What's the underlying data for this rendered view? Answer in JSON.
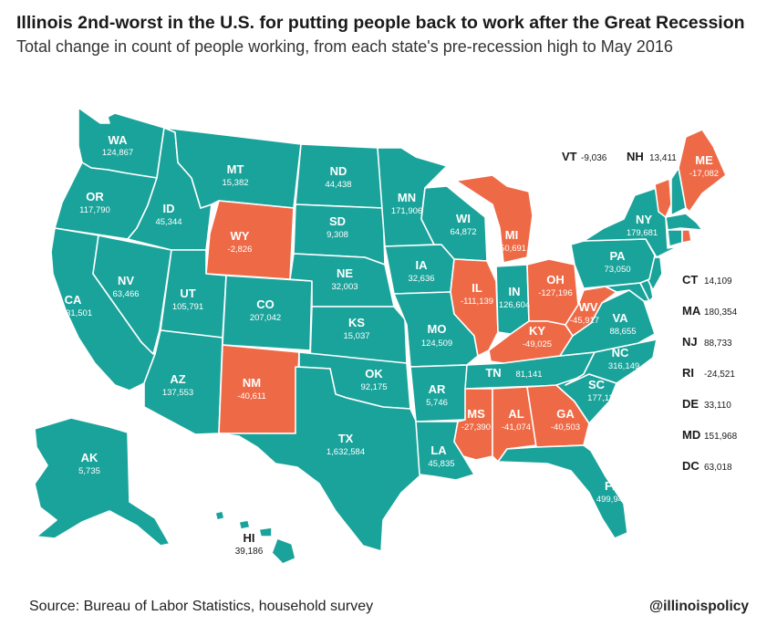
{
  "title": "Illinois 2nd-worst in the U.S. for putting people back to work after the Great Recession",
  "subtitle": "Total change in count of people working, from each state's pre-recession high to May 2016",
  "source": "Source: Bureau of Labor Statistics, household survey",
  "brand": "@illinoispolicy",
  "colors": {
    "gain": "#1aa39a",
    "loss": "#ee6a47",
    "border": "#ffffff"
  },
  "states": [
    {
      "abbr": "WA",
      "value": "124,867"
    },
    {
      "abbr": "OR",
      "value": "117,790"
    },
    {
      "abbr": "CA",
      "value": "1,131,501"
    },
    {
      "abbr": "ID",
      "value": "45,344"
    },
    {
      "abbr": "NV",
      "value": "63,466"
    },
    {
      "abbr": "MT",
      "value": "15,382"
    },
    {
      "abbr": "WY",
      "value": "-2,826"
    },
    {
      "abbr": "UT",
      "value": "105,791"
    },
    {
      "abbr": "AZ",
      "value": "137,553"
    },
    {
      "abbr": "CO",
      "value": "207,042"
    },
    {
      "abbr": "NM",
      "value": "-40,611"
    },
    {
      "abbr": "ND",
      "value": "44,438"
    },
    {
      "abbr": "SD",
      "value": "9,308"
    },
    {
      "abbr": "NE",
      "value": "32,003"
    },
    {
      "abbr": "KS",
      "value": "15,037"
    },
    {
      "abbr": "OK",
      "value": "92,175"
    },
    {
      "abbr": "TX",
      "value": "1,632,584"
    },
    {
      "abbr": "MN",
      "value": "171,906"
    },
    {
      "abbr": "IA",
      "value": "32,636"
    },
    {
      "abbr": "MO",
      "value": "124,509"
    },
    {
      "abbr": "AR",
      "value": "5,746"
    },
    {
      "abbr": "LA",
      "value": "45,835"
    },
    {
      "abbr": "WI",
      "value": "64,872"
    },
    {
      "abbr": "IL",
      "value": "-111,139"
    },
    {
      "abbr": "MI",
      "value": "-50,691"
    },
    {
      "abbr": "IN",
      "value": "126,604"
    },
    {
      "abbr": "OH",
      "value": "-127,196"
    },
    {
      "abbr": "KY",
      "value": "-49,025"
    },
    {
      "abbr": "TN",
      "value": "81,141"
    },
    {
      "abbr": "MS",
      "value": "-27,390"
    },
    {
      "abbr": "AL",
      "value": "-41,074"
    },
    {
      "abbr": "GA",
      "value": "-40,503"
    },
    {
      "abbr": "FL",
      "value": "499,949"
    },
    {
      "abbr": "SC",
      "value": "177,115"
    },
    {
      "abbr": "NC",
      "value": "316,149"
    },
    {
      "abbr": "VA",
      "value": "88,655"
    },
    {
      "abbr": "WV",
      "value": "-45,917"
    },
    {
      "abbr": "PA",
      "value": "73,050"
    },
    {
      "abbr": "NY",
      "value": "179,681"
    },
    {
      "abbr": "ME",
      "value": "-17,082"
    },
    {
      "abbr": "AK",
      "value": "5,735"
    },
    {
      "abbr": "HI",
      "value": "39,186"
    }
  ],
  "callouts": [
    {
      "abbr": "VT",
      "value": "-9,036"
    },
    {
      "abbr": "NH",
      "value": "13,411"
    },
    {
      "abbr": "CT",
      "value": "14,109"
    },
    {
      "abbr": "MA",
      "value": "180,354"
    },
    {
      "abbr": "NJ",
      "value": "88,733"
    },
    {
      "abbr": "RI",
      "value": "-24,521"
    },
    {
      "abbr": "DE",
      "value": "33,110"
    },
    {
      "abbr": "MD",
      "value": "151,968"
    },
    {
      "abbr": "DC",
      "value": "63,018"
    }
  ]
}
